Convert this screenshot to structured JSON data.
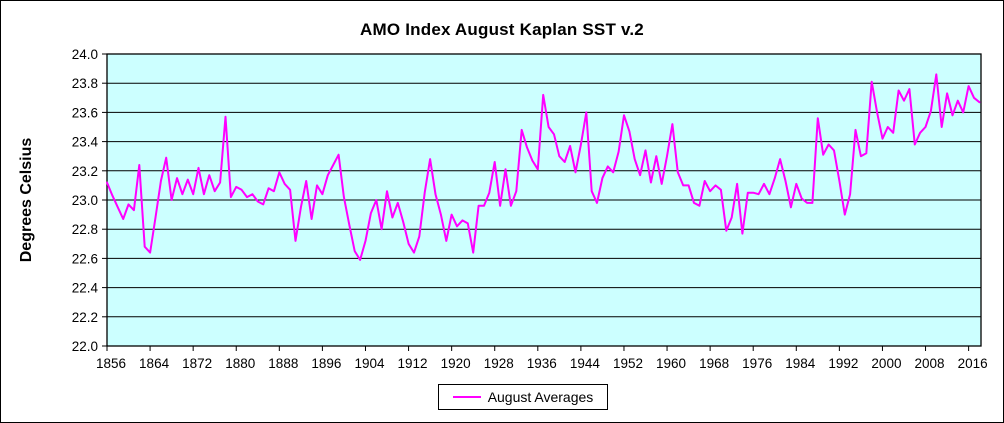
{
  "chart": {
    "title": "AMO Index August Kaplan SST v.2",
    "ylabel": "Degrees Celsius",
    "legend_label": "August Averages",
    "colors": {
      "line": "#FF00FF",
      "plot_bg": "#CCFFFF",
      "grid": "#000000",
      "axis": "#000000",
      "text": "#000000",
      "background": "#FFFFFF"
    }
  },
  "chart_data": {
    "type": "line",
    "title": "AMO Index August Kaplan SST v.2",
    "xlabel": "",
    "ylabel": "Degrees Celsius",
    "grid": "horizontal",
    "legend_position": "bottom-center",
    "xlim": [
      1856,
      2018.3
    ],
    "ylim": [
      22.0,
      24.0
    ],
    "x_ticks": [
      1856,
      1864,
      1872,
      1880,
      1888,
      1896,
      1904,
      1912,
      1920,
      1928,
      1936,
      1944,
      1952,
      1960,
      1968,
      1976,
      1984,
      1992,
      2000,
      2008,
      2016
    ],
    "y_ticks": [
      "22.0",
      "22.2",
      "22.4",
      "22.6",
      "22.8",
      "23.0",
      "23.2",
      "23.4",
      "23.6",
      "23.8",
      "24.0"
    ],
    "series": [
      {
        "name": "August Averages",
        "color": "#FF00FF",
        "x": [
          1856,
          1857,
          1858,
          1859,
          1860,
          1861,
          1862,
          1863,
          1864,
          1865,
          1866,
          1867,
          1868,
          1869,
          1870,
          1871,
          1872,
          1873,
          1874,
          1875,
          1876,
          1877,
          1878,
          1879,
          1880,
          1881,
          1882,
          1883,
          1884,
          1885,
          1886,
          1887,
          1888,
          1889,
          1890,
          1891,
          1892,
          1893,
          1894,
          1895,
          1896,
          1897,
          1898,
          1899,
          1900,
          1901,
          1902,
          1903,
          1904,
          1905,
          1906,
          1907,
          1908,
          1909,
          1910,
          1911,
          1912,
          1913,
          1914,
          1915,
          1916,
          1917,
          1918,
          1919,
          1920,
          1921,
          1922,
          1923,
          1924,
          1925,
          1926,
          1927,
          1928,
          1929,
          1930,
          1931,
          1932,
          1933,
          1934,
          1935,
          1936,
          1937,
          1938,
          1939,
          1940,
          1941,
          1942,
          1943,
          1944,
          1945,
          1946,
          1947,
          1948,
          1949,
          1950,
          1951,
          1952,
          1953,
          1954,
          1955,
          1956,
          1957,
          1958,
          1959,
          1960,
          1961,
          1962,
          1963,
          1964,
          1965,
          1966,
          1967,
          1968,
          1969,
          1970,
          1971,
          1972,
          1973,
          1974,
          1975,
          1976,
          1977,
          1978,
          1979,
          1980,
          1981,
          1982,
          1983,
          1984,
          1985,
          1986,
          1987,
          1988,
          1989,
          1990,
          1991,
          1992,
          1993,
          1994,
          1995,
          1996,
          1997,
          1998,
          1999,
          2000,
          2001,
          2002,
          2003,
          2004,
          2005,
          2006,
          2007,
          2008,
          2009,
          2010,
          2011,
          2012,
          2013,
          2014,
          2015,
          2016,
          2017,
          2018
        ],
        "values": [
          23.12,
          23.03,
          22.95,
          22.87,
          22.97,
          22.93,
          23.24,
          22.68,
          22.64,
          22.88,
          23.13,
          23.29,
          23.0,
          23.15,
          23.04,
          23.14,
          23.04,
          23.22,
          23.04,
          23.17,
          23.06,
          23.12,
          23.57,
          23.02,
          23.09,
          23.07,
          23.02,
          23.04,
          22.99,
          22.97,
          23.08,
          23.06,
          23.19,
          23.11,
          23.07,
          22.72,
          22.95,
          23.13,
          22.87,
          23.1,
          23.04,
          23.17,
          23.24,
          23.31,
          23.02,
          22.83,
          22.65,
          22.59,
          22.72,
          22.91,
          23.0,
          22.8,
          23.06,
          22.88,
          22.98,
          22.85,
          22.7,
          22.64,
          22.75,
          23.05,
          23.28,
          23.04,
          22.9,
          22.72,
          22.9,
          22.82,
          22.86,
          22.84,
          22.64,
          22.96,
          22.96,
          23.05,
          23.26,
          22.96,
          23.21,
          22.96,
          23.06,
          23.48,
          23.36,
          23.27,
          23.21,
          23.72,
          23.5,
          23.45,
          23.3,
          23.26,
          23.37,
          23.19,
          23.38,
          23.6,
          23.06,
          22.98,
          23.15,
          23.23,
          23.19,
          23.33,
          23.58,
          23.47,
          23.28,
          23.17,
          23.34,
          23.12,
          23.3,
          23.11,
          23.3,
          23.52,
          23.19,
          23.1,
          23.1,
          22.98,
          22.96,
          23.13,
          23.06,
          23.1,
          23.07,
          22.79,
          22.88,
          23.11,
          22.77,
          23.05,
          23.05,
          23.04,
          23.11,
          23.04,
          23.15,
          23.28,
          23.13,
          22.95,
          23.11,
          23.01,
          22.98,
          22.98,
          23.56,
          23.31,
          23.38,
          23.34,
          23.13,
          22.9,
          23.04,
          23.48,
          23.3,
          23.32,
          23.81,
          23.6,
          23.42,
          23.5,
          23.46,
          23.75,
          23.68,
          23.76,
          23.38,
          23.46,
          23.5,
          23.61,
          23.86,
          23.5,
          23.73,
          23.58,
          23.68,
          23.6,
          23.78,
          23.7,
          23.67
        ]
      }
    ]
  }
}
